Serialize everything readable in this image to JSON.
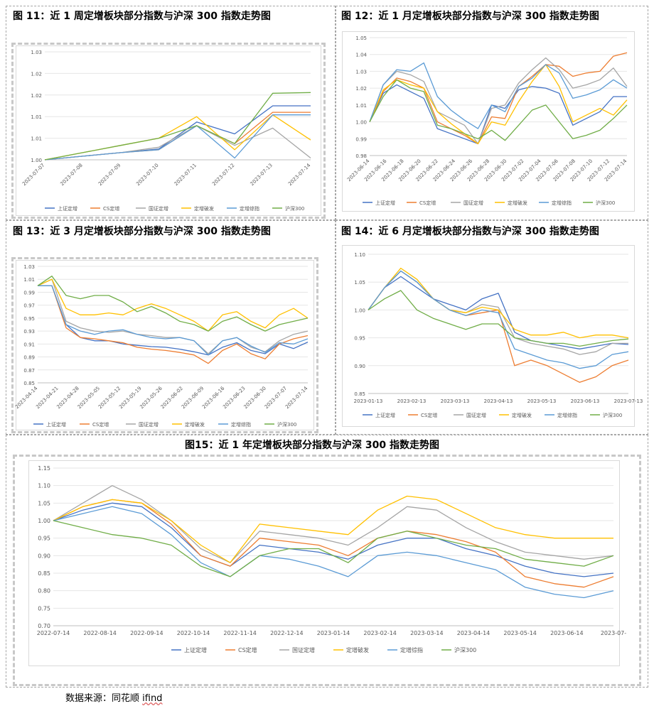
{
  "series_meta": [
    {
      "name": "上证定增",
      "color": "#4472c4"
    },
    {
      "name": "CS定增",
      "color": "#ed7d31"
    },
    {
      "name": "国证定增",
      "color": "#a5a5a5"
    },
    {
      "name": "定增破发",
      "color": "#ffc000"
    },
    {
      "name": "定增综指",
      "color": "#5b9bd5"
    },
    {
      "name": "沪深300",
      "color": "#70ad47"
    }
  ],
  "source": {
    "label": "数据来源：同花顺 ",
    "brand": "ifind"
  },
  "chart_data": [
    {
      "id": "fig11",
      "type": "line",
      "title": "图 11：近 1 周定增板块部分指数与沪深 300 指数走势图",
      "ylim": [
        1.0,
        1.03
      ],
      "yticks": [
        "1.03",
        "1.02",
        "1.02",
        "1.01",
        "1.01",
        "1.00"
      ],
      "categories": [
        "2023-07-07",
        "2023-07-08",
        "2023-07-09",
        "2023-07-10",
        "2023-07-11",
        "2023-07-12",
        "2023-07-13",
        "2023-07-14"
      ],
      "series": [
        {
          "name": "上证定增",
          "values": [
            1.0,
            1.001,
            1.002,
            1.003,
            1.0105,
            1.0072,
            1.015,
            1.015
          ]
        },
        {
          "name": "CS定增",
          "values": [
            1.0,
            1.001,
            1.002,
            1.0028,
            1.0095,
            1.0045,
            1.0132,
            1.0132
          ]
        },
        {
          "name": "国证定增",
          "values": [
            1.0,
            1.001,
            1.002,
            1.0035,
            1.0095,
            1.004,
            1.0088,
            1.0005
          ]
        },
        {
          "name": "定增破发",
          "values": [
            1.0,
            1.002,
            1.004,
            1.006,
            1.012,
            1.0028,
            1.0125,
            1.0055
          ]
        },
        {
          "name": "定增综指",
          "values": [
            1.0,
            1.001,
            1.002,
            1.0028,
            1.0095,
            1.0005,
            1.0125,
            1.0125
          ]
        },
        {
          "name": "沪深300",
          "values": [
            1.0,
            1.002,
            1.004,
            1.006,
            1.0095,
            1.0045,
            1.0185,
            1.0187
          ]
        }
      ]
    },
    {
      "id": "fig12",
      "type": "line",
      "title": "图 12：近 1 月定增板块部分指数与沪深 300 指数走势图",
      "ylim": [
        0.98,
        1.05
      ],
      "yticks": [
        "1.05",
        "1.04",
        "1.03",
        "1.02",
        "1.01",
        "1.00",
        "0.99",
        "0.98"
      ],
      "xlabels": [
        "2023-06-14",
        "2023-06-16",
        "2023-06-18",
        "2023-06-20",
        "2023-06-22",
        "2023-06-24",
        "2023-06-26",
        "2023-06-28",
        "2023-06-30",
        "2023-07-02",
        "2023-07-04",
        "2023-07-06",
        "2023-07-08",
        "2023-07-10",
        "2023-07-12",
        "2023-07-14"
      ],
      "series": [
        {
          "name": "上证定增",
          "values": [
            1.0,
            1.017,
            1.022,
            1.018,
            1.014,
            0.996,
            0.993,
            0.99,
            0.987,
            1.01,
            1.008,
            1.019,
            1.021,
            1.02,
            1.017,
            0.998,
            1.002,
            1.006,
            1.015,
            1.015
          ]
        },
        {
          "name": "CS定增",
          "values": [
            1.0,
            1.018,
            1.026,
            1.024,
            1.02,
            1.0,
            0.996,
            0.992,
            0.987,
            1.003,
            1.002,
            1.021,
            1.027,
            1.034,
            1.033,
            1.027,
            1.029,
            1.03,
            1.039,
            1.041
          ]
        },
        {
          "name": "国证定增",
          "values": [
            1.0,
            1.022,
            1.03,
            1.028,
            1.024,
            1.006,
            1.002,
            0.998,
            0.987,
            1.008,
            1.01,
            1.023,
            1.031,
            1.038,
            1.031,
            1.02,
            1.022,
            1.025,
            1.032,
            1.021
          ]
        },
        {
          "name": "定增破发",
          "values": [
            1.0,
            1.019,
            1.025,
            1.022,
            1.02,
            1.006,
            0.999,
            0.993,
            0.987,
            1.0,
            0.998,
            1.012,
            1.024,
            1.034,
            1.021,
            1.0,
            1.004,
            1.008,
            1.004,
            1.013
          ]
        },
        {
          "name": "定增综指",
          "values": [
            1.0,
            1.022,
            1.031,
            1.03,
            1.035,
            1.015,
            1.007,
            1.001,
            0.996,
            1.01,
            1.006,
            1.021,
            1.026,
            1.034,
            1.029,
            1.014,
            1.016,
            1.019,
            1.025,
            1.02
          ]
        },
        {
          "name": "沪深300",
          "values": [
            1.0,
            1.015,
            1.025,
            1.02,
            1.018,
            0.998,
            0.996,
            0.993,
            0.99,
            0.995,
            0.989,
            0.998,
            1.007,
            1.01,
            1.0,
            0.99,
            0.992,
            0.995,
            1.002,
            1.01
          ]
        }
      ]
    },
    {
      "id": "fig13",
      "type": "line",
      "title": "图 13：近 3 月定增板块部分指数与沪深 300 指数走势图",
      "ylim": [
        0.85,
        1.03
      ],
      "yticks": [
        "1.03",
        "1.01",
        "0.99",
        "0.97",
        "0.95",
        "0.93",
        "0.91",
        "0.89",
        "0.87",
        "0.85"
      ],
      "xlabels": [
        "2023-04-14",
        "2023-04-21",
        "2023-04-28",
        "2023-05-05",
        "2023-05-12",
        "2023-05-19",
        "2023-05-26",
        "2023-06-02",
        "2023-06-09",
        "2023-06-16",
        "2023-06-23",
        "2023-06-30",
        "2023-07-07",
        "2023-07-14"
      ],
      "series": [
        {
          "name": "上证定增",
          "values": [
            1.0,
            1.0,
            0.94,
            0.92,
            0.915,
            0.915,
            0.91,
            0.908,
            0.906,
            0.905,
            0.902,
            0.898,
            0.893,
            0.905,
            0.912,
            0.9,
            0.895,
            0.91,
            0.903,
            0.913
          ]
        },
        {
          "name": "CS定增",
          "values": [
            1.0,
            1.0,
            0.935,
            0.92,
            0.918,
            0.915,
            0.912,
            0.905,
            0.902,
            0.9,
            0.897,
            0.893,
            0.88,
            0.9,
            0.91,
            0.895,
            0.887,
            0.91,
            0.918,
            0.923
          ]
        },
        {
          "name": "国证定增",
          "values": [
            1.0,
            1.01,
            0.945,
            0.935,
            0.93,
            0.928,
            0.93,
            0.925,
            0.923,
            0.92,
            0.92,
            0.915,
            0.895,
            0.915,
            0.92,
            0.905,
            0.898,
            0.915,
            0.925,
            0.93
          ]
        },
        {
          "name": "定增破发",
          "values": [
            1.0,
            1.01,
            0.965,
            0.955,
            0.955,
            0.958,
            0.955,
            0.965,
            0.972,
            0.965,
            0.955,
            0.945,
            0.93,
            0.955,
            0.96,
            0.945,
            0.935,
            0.955,
            0.965,
            0.95
          ]
        },
        {
          "name": "定增综指",
          "values": [
            1.0,
            1.0,
            0.94,
            0.93,
            0.925,
            0.93,
            0.932,
            0.925,
            0.92,
            0.918,
            0.92,
            0.915,
            0.893,
            0.915,
            0.92,
            0.907,
            0.897,
            0.912,
            0.91,
            0.918
          ]
        },
        {
          "name": "沪深300",
          "values": [
            1.0,
            1.015,
            0.985,
            0.98,
            0.985,
            0.985,
            0.975,
            0.96,
            0.968,
            0.958,
            0.945,
            0.94,
            0.93,
            0.945,
            0.952,
            0.94,
            0.93,
            0.94,
            0.945,
            0.95
          ]
        }
      ]
    },
    {
      "id": "fig14",
      "type": "line",
      "title": "图 14：近 6 月定增板块部分指数与沪深 300 指数走势图",
      "ylim": [
        0.85,
        1.1
      ],
      "yticks": [
        "1.10",
        "1.05",
        "1.00",
        "0.95",
        "0.90",
        "0.85"
      ],
      "xlabels": [
        "2023-01-13",
        "2023-02-13",
        "2023-03-13",
        "2023-04-13",
        "2023-05-13",
        "2023-06-13",
        "2023-07-13"
      ],
      "series": [
        {
          "name": "上证定增",
          "values": [
            1.0,
            1.04,
            1.06,
            1.04,
            1.02,
            1.01,
            1.0,
            1.02,
            1.03,
            0.96,
            0.945,
            0.94,
            0.935,
            0.93,
            0.935,
            0.94,
            0.938
          ]
        },
        {
          "name": "CS定增",
          "values": [
            1.0,
            1.04,
            1.07,
            1.05,
            1.02,
            1.0,
            0.99,
            0.995,
            1.0,
            0.9,
            0.91,
            0.9,
            0.885,
            0.87,
            0.88,
            0.9,
            0.91
          ]
        },
        {
          "name": "国证定增",
          "values": [
            1.0,
            1.04,
            1.07,
            1.05,
            1.02,
            1.0,
            0.995,
            1.01,
            1.005,
            0.95,
            0.94,
            0.935,
            0.93,
            0.92,
            0.925,
            0.94,
            0.94
          ]
        },
        {
          "name": "定增破发",
          "values": [
            1.0,
            1.04,
            1.075,
            1.055,
            1.02,
            1.0,
            0.995,
            1.005,
            1.0,
            0.965,
            0.955,
            0.955,
            0.96,
            0.95,
            0.955,
            0.955,
            0.95
          ]
        },
        {
          "name": "定增综指",
          "values": [
            1.0,
            1.04,
            1.07,
            1.05,
            1.02,
            1.0,
            0.99,
            1.0,
            0.995,
            0.93,
            0.92,
            0.91,
            0.905,
            0.895,
            0.9,
            0.92,
            0.925
          ]
        },
        {
          "name": "沪深300",
          "values": [
            1.0,
            1.02,
            1.035,
            1.0,
            0.985,
            0.975,
            0.965,
            0.975,
            0.975,
            0.95,
            0.945,
            0.94,
            0.94,
            0.935,
            0.94,
            0.945,
            0.948
          ]
        }
      ]
    },
    {
      "id": "fig15",
      "type": "line",
      "title": "图15：近 1 年定增板块部分指数与沪深 300 指数走势图",
      "ylim": [
        0.7,
        1.15
      ],
      "yticks": [
        "1.15",
        "1.10",
        "1.05",
        "1.00",
        "0.95",
        "0.90",
        "0.85",
        "0.80",
        "0.75",
        "0.70"
      ],
      "xlabels": [
        "2022-07-14",
        "2022-08-14",
        "2022-09-14",
        "2022-10-14",
        "2022-11-14",
        "2022-12-14",
        "2023-01-14",
        "2023-02-14",
        "2023-03-14",
        "2023-04-14",
        "2023-05-14",
        "2023-06-14",
        "2023-07-"
      ],
      "series": [
        {
          "name": "上证定增",
          "values": [
            1.0,
            1.03,
            1.05,
            1.04,
            0.98,
            0.9,
            0.87,
            0.93,
            0.92,
            0.91,
            0.89,
            0.93,
            0.95,
            0.95,
            0.92,
            0.9,
            0.87,
            0.85,
            0.84,
            0.85
          ]
        },
        {
          "name": "CS定增",
          "values": [
            1.0,
            1.04,
            1.06,
            1.05,
            0.99,
            0.9,
            0.87,
            0.95,
            0.94,
            0.93,
            0.9,
            0.95,
            0.97,
            0.96,
            0.94,
            0.91,
            0.84,
            0.82,
            0.81,
            0.84
          ]
        },
        {
          "name": "国证定增",
          "values": [
            1.0,
            1.05,
            1.1,
            1.06,
            1.0,
            0.92,
            0.88,
            0.97,
            0.96,
            0.95,
            0.93,
            0.98,
            1.04,
            1.03,
            0.98,
            0.94,
            0.91,
            0.9,
            0.89,
            0.9
          ]
        },
        {
          "name": "定增破发",
          "values": [
            1.0,
            1.04,
            1.06,
            1.05,
            1.0,
            0.93,
            0.88,
            0.99,
            0.98,
            0.97,
            0.96,
            1.03,
            1.07,
            1.06,
            1.02,
            0.98,
            0.96,
            0.95,
            0.95,
            0.95
          ]
        },
        {
          "name": "定增综指",
          "values": [
            1.0,
            1.02,
            1.04,
            1.02,
            0.96,
            0.88,
            0.84,
            0.9,
            0.89,
            0.87,
            0.84,
            0.9,
            0.91,
            0.9,
            0.88,
            0.86,
            0.81,
            0.79,
            0.78,
            0.8
          ]
        },
        {
          "name": "沪深300",
          "values": [
            1.0,
            0.98,
            0.96,
            0.95,
            0.93,
            0.87,
            0.84,
            0.9,
            0.92,
            0.92,
            0.88,
            0.95,
            0.97,
            0.95,
            0.93,
            0.92,
            0.89,
            0.88,
            0.87,
            0.9
          ]
        }
      ]
    }
  ]
}
